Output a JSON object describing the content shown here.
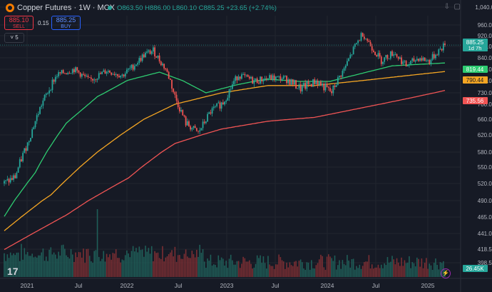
{
  "header": {
    "symbol_title": "Copper Futures · 1W · MCX",
    "ohlc": {
      "open": "O863.50",
      "high": "H886.00",
      "low": "L860.10",
      "close": "C885.25",
      "change": "+23.65 (+2.74%)"
    },
    "sell": {
      "price": "885.10",
      "label": "SELL"
    },
    "buy": {
      "price": "885.25",
      "label": "BUY"
    },
    "spread": "0.15",
    "collapse_label": "5"
  },
  "colors": {
    "up": "#26a69a",
    "down": "#ef5350",
    "ma_fast": "#2ecc71",
    "ma_mid": "#f5a623",
    "ma_slow": "#f05454",
    "background": "#161a25"
  },
  "chart_data": {
    "type": "candlestick",
    "title": "Copper Futures · 1W · MCX",
    "x_ticks": [
      "2021",
      "Jul",
      "2022",
      "Jul",
      "2023",
      "Jul",
      "2024",
      "Jul",
      "2025"
    ],
    "y_ticks": [
      "1,040.00",
      "960.00",
      "920.00",
      "880.00",
      "840.00",
      "800.00",
      "760.00",
      "730.00",
      "700.00",
      "660.00",
      "620.00",
      "580.00",
      "550.00",
      "520.00",
      "490.00",
      "465.00",
      "441.00",
      "418.50",
      "398.50"
    ],
    "price_labels": [
      {
        "value": "885.25",
        "sub": "1d 7h",
        "color": "#26a69a"
      },
      {
        "value": "819.44",
        "color": "#2ecc71"
      },
      {
        "value": "790.44",
        "color": "#f5a623"
      },
      {
        "value": "735.56",
        "color": "#f05454"
      },
      {
        "value": "26.45K",
        "color": "#26a69a"
      }
    ],
    "price_anchors": [
      [
        0,
        520
      ],
      [
        7,
        532
      ],
      [
        15,
        600
      ],
      [
        24,
        700
      ],
      [
        34,
        780
      ],
      [
        45,
        800
      ],
      [
        55,
        760
      ],
      [
        66,
        795
      ],
      [
        76,
        778
      ],
      [
        83,
        810
      ],
      [
        90,
        850
      ],
      [
        96,
        865
      ],
      [
        104,
        800
      ],
      [
        110,
        720
      ],
      [
        117,
        650
      ],
      [
        125,
        625
      ],
      [
        133,
        680
      ],
      [
        141,
        705
      ],
      [
        151,
        780
      ],
      [
        161,
        760
      ],
      [
        171,
        770
      ],
      [
        181,
        768
      ],
      [
        191,
        740
      ],
      [
        201,
        760
      ],
      [
        211,
        730
      ],
      [
        219,
        800
      ],
      [
        226,
        880
      ],
      [
        231,
        930
      ],
      [
        236,
        885
      ],
      [
        243,
        830
      ],
      [
        251,
        860
      ],
      [
        259,
        812
      ],
      [
        267,
        840
      ],
      [
        274,
        828
      ],
      [
        279,
        860
      ],
      [
        284,
        885
      ]
    ],
    "ma_fast_anchors": [
      [
        0,
        466
      ],
      [
        20,
        540
      ],
      [
        40,
        650
      ],
      [
        60,
        720
      ],
      [
        80,
        762
      ],
      [
        100,
        790
      ],
      [
        110,
        770
      ],
      [
        130,
        730
      ],
      [
        150,
        750
      ],
      [
        170,
        765
      ],
      [
        190,
        758
      ],
      [
        210,
        758
      ],
      [
        230,
        785
      ],
      [
        250,
        812
      ],
      [
        270,
        818
      ],
      [
        284,
        822
      ]
    ],
    "ma_mid_anchors": [
      [
        0,
        445
      ],
      [
        30,
        500
      ],
      [
        60,
        580
      ],
      [
        90,
        660
      ],
      [
        110,
        700
      ],
      [
        140,
        730
      ],
      [
        170,
        748
      ],
      [
        200,
        748
      ],
      [
        230,
        760
      ],
      [
        260,
        778
      ],
      [
        284,
        792
      ]
    ],
    "ma_slow_anchors": [
      [
        0,
        418
      ],
      [
        40,
        468
      ],
      [
        80,
        530
      ],
      [
        110,
        600
      ],
      [
        140,
        635
      ],
      [
        170,
        655
      ],
      [
        200,
        665
      ],
      [
        230,
        690
      ],
      [
        260,
        715
      ],
      [
        284,
        736
      ]
    ],
    "weeks": 285,
    "volume_peak_week": 60,
    "series": [
      {
        "name": "Copper Futures",
        "kind": "candles"
      },
      {
        "name": "",
        "kind": "moving-average",
        "last": 819.44
      },
      {
        "name": "",
        "kind": "moving-average",
        "last": 790.44
      },
      {
        "name": "",
        "kind": "moving-average",
        "last": 735.56
      }
    ],
    "last_close": 885.25,
    "grid": true,
    "legend": "none"
  }
}
